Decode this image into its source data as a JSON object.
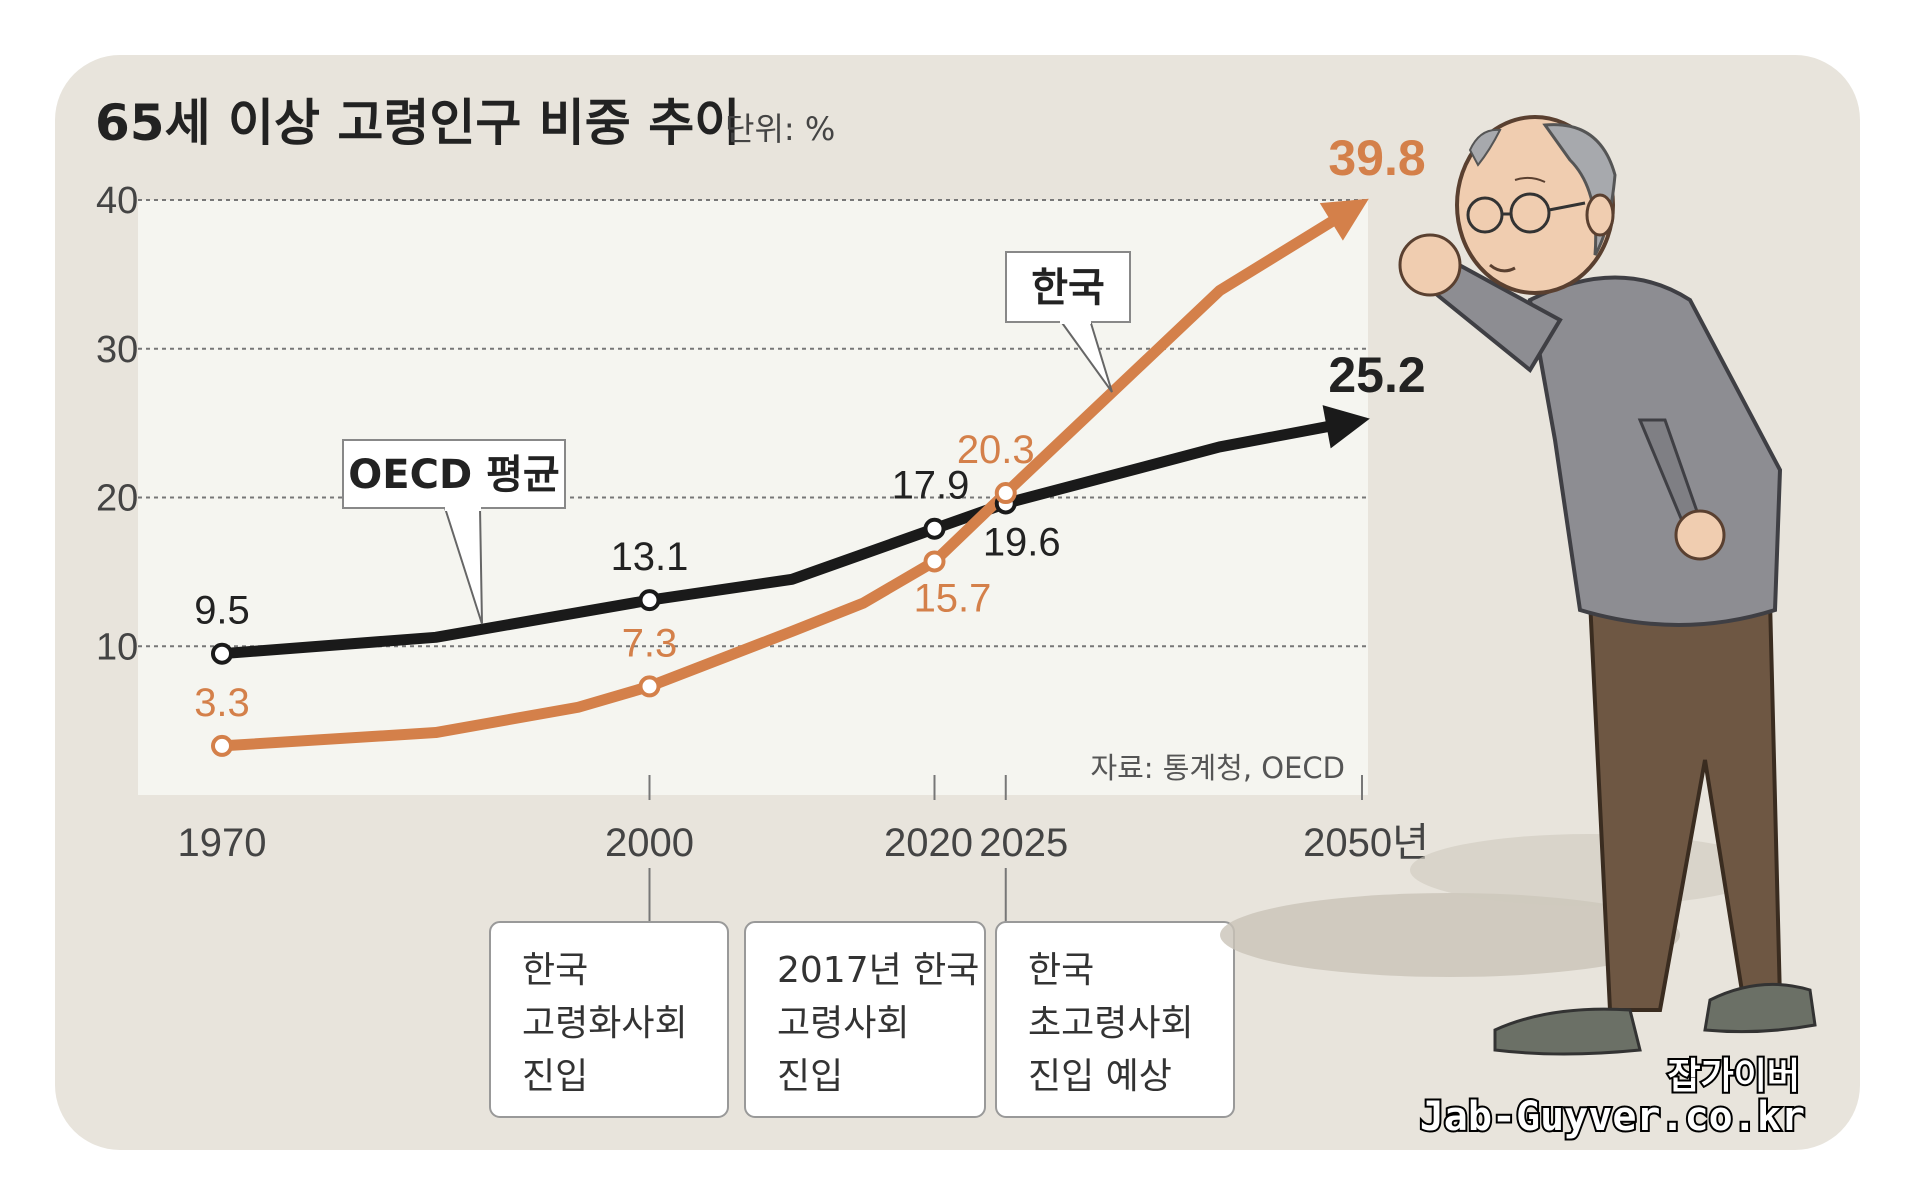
{
  "chart_data": {
    "type": "line",
    "title": "65세 이상 고령인구 비중 추이",
    "unit_label": "단위: %",
    "x": [
      1970,
      2000,
      2020,
      2025,
      2050
    ],
    "x_tick_labels": [
      "1970",
      "2000",
      "2020",
      "2025",
      "2050년"
    ],
    "y_ticks": [
      "10",
      "20",
      "30",
      "40"
    ],
    "ylim": [
      0,
      40
    ],
    "grid": true,
    "series": [
      {
        "name": "OECD 평균",
        "color": "#1a1a1a",
        "points": [
          [
            1970,
            9.5
          ],
          [
            1985,
            10.6
          ],
          [
            2000,
            13.1
          ],
          [
            2010,
            14.5
          ],
          [
            2020,
            17.9
          ],
          [
            2025,
            19.6
          ],
          [
            2040,
            23.4
          ],
          [
            2050,
            25.2
          ]
        ],
        "labeled": [
          {
            "x": 1970,
            "y": 9.5,
            "label": "9.5"
          },
          {
            "x": 2000,
            "y": 13.1,
            "label": "13.1"
          },
          {
            "x": 2020,
            "y": 17.9,
            "label": "17.9"
          },
          {
            "x": 2025,
            "y": 19.6,
            "label": "19.6"
          }
        ],
        "end_label": "25.2"
      },
      {
        "name": "한국",
        "color": "#d4804a",
        "points": [
          [
            1970,
            3.3
          ],
          [
            1985,
            4.2
          ],
          [
            1995,
            5.9
          ],
          [
            2000,
            7.3
          ],
          [
            2010,
            11.0
          ],
          [
            2015,
            12.9
          ],
          [
            2020,
            15.7
          ],
          [
            2025,
            20.3
          ],
          [
            2040,
            33.9
          ],
          [
            2050,
            39.8
          ]
        ],
        "labeled": [
          {
            "x": 1970,
            "y": 3.3,
            "label": "3.3"
          },
          {
            "x": 2000,
            "y": 7.3,
            "label": "7.3"
          },
          {
            "x": 2020,
            "y": 15.7,
            "label": "15.7"
          },
          {
            "x": 2025,
            "y": 20.3,
            "label": "20.3"
          }
        ],
        "end_label": "39.8"
      }
    ],
    "annotations": [
      {
        "x": 2000,
        "lines": [
          "한국",
          "고령화사회",
          "진입"
        ]
      },
      {
        "x": 2017,
        "lines": [
          "2017년 한국",
          "고령사회",
          "진입"
        ]
      },
      {
        "x": 2025,
        "lines": [
          "한국",
          "초고령사회",
          "진입 예상"
        ]
      }
    ],
    "source": "자료: 통계청, OECD"
  },
  "watermark": {
    "line1": "잡가이버",
    "line2": "Jab-Guyver.co.kr"
  },
  "colors": {
    "panel": "#e8e4dc",
    "plot": "#f5f5f0",
    "oecd": "#1a1a1a",
    "korea": "#d4804a"
  }
}
